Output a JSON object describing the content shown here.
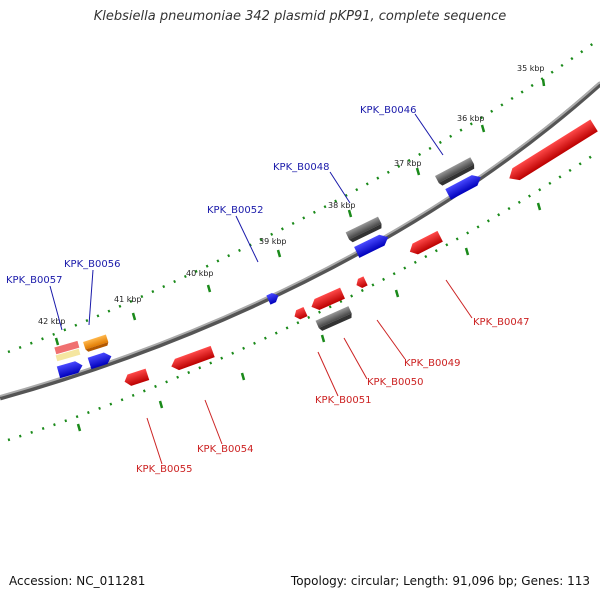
{
  "title": "Klebsiella pneumoniae 342 plasmid pKP91, complete sequence",
  "footer": {
    "accession": "Accession: NC_011281",
    "summary": "Topology: circular; Length: 91,096 bp; Genes: 113"
  },
  "scale_labels": [
    "35 kbp",
    "36 kbp",
    "37 kbp",
    "38 kbp",
    "39 kbp",
    "40 kbp",
    "41 kbp",
    "42 kbp"
  ],
  "gene_labels": {
    "forward": [
      "KPK_B0046",
      "KPK_B0048",
      "KPK_B0052",
      "KPK_B0056",
      "KPK_B0057"
    ],
    "reverse": [
      "KPK_B0047",
      "KPK_B0049",
      "KPK_B0050",
      "KPK_B0051",
      "KPK_B0054",
      "KPK_B0055"
    ]
  },
  "colors": {
    "backbone": "#8a8a8a",
    "forward_gene": "#0000ee",
    "reverse_gene": "#ee1111",
    "other_feature": "#666666",
    "orange_feature": "#ff9900",
    "pink_feature": "#f07070",
    "yellow_feature": "#f5e6a0",
    "tick": "#1a8a1a",
    "forward_label": "#1a1aaa",
    "reverse_label": "#cc2222"
  }
}
